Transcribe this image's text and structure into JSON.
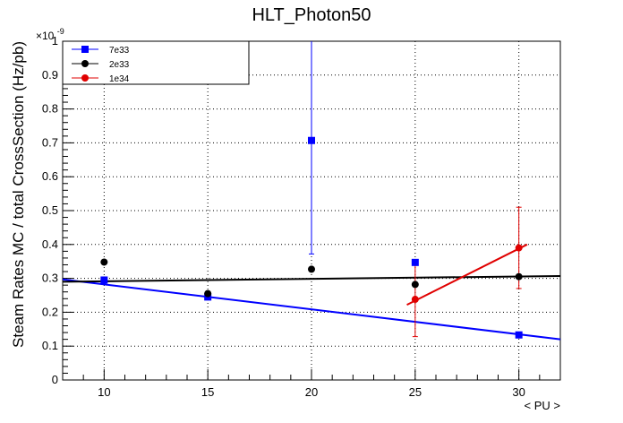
{
  "chart_data": {
    "type": "scatter",
    "title": "HLT_Photon50",
    "xlabel": "< PU >",
    "ylabel": "Steam Rates MC / total CrossSection (Hz/pb)",
    "y_exponent_label": "×10",
    "y_exponent_power": "-9",
    "xlim": [
      8,
      32
    ],
    "ylim": [
      0,
      1
    ],
    "x_ticks": [
      "10",
      "15",
      "20",
      "25",
      "30"
    ],
    "y_ticks": [
      "0",
      "0.1",
      "0.2",
      "0.3",
      "0.4",
      "0.5",
      "0.6",
      "0.7",
      "0.8",
      "0.9",
      "1"
    ],
    "grid": true,
    "legend_position": "top-left",
    "series": [
      {
        "name": "7e33",
        "color": "#0000ff",
        "marker": "square",
        "x": [
          10,
          15,
          20,
          25,
          30
        ],
        "y": [
          0.295,
          0.245,
          0.707,
          0.347,
          0.133
        ],
        "yerr": [
          0.0,
          0.0,
          0.335,
          0.0,
          0.0
        ],
        "fit": {
          "x": [
            8,
            32
          ],
          "y": [
            0.297,
            0.12
          ]
        }
      },
      {
        "name": "2e33",
        "color": "#000000",
        "marker": "circle",
        "x": [
          10,
          15,
          20,
          25,
          30
        ],
        "y": [
          0.348,
          0.255,
          0.327,
          0.282,
          0.305
        ],
        "yerr": [
          0.0,
          0.0,
          0.0,
          0.0,
          0.0
        ],
        "fit": {
          "x": [
            8,
            32
          ],
          "y": [
            0.29,
            0.307
          ]
        }
      },
      {
        "name": "1e34",
        "color": "#e00000",
        "marker": "circle",
        "x": [
          25,
          30
        ],
        "y": [
          0.238,
          0.39
        ],
        "yerr": [
          0.11,
          0.12
        ],
        "fit": {
          "x": [
            24.6,
            30.4
          ],
          "y": [
            0.222,
            0.4
          ]
        }
      }
    ]
  }
}
